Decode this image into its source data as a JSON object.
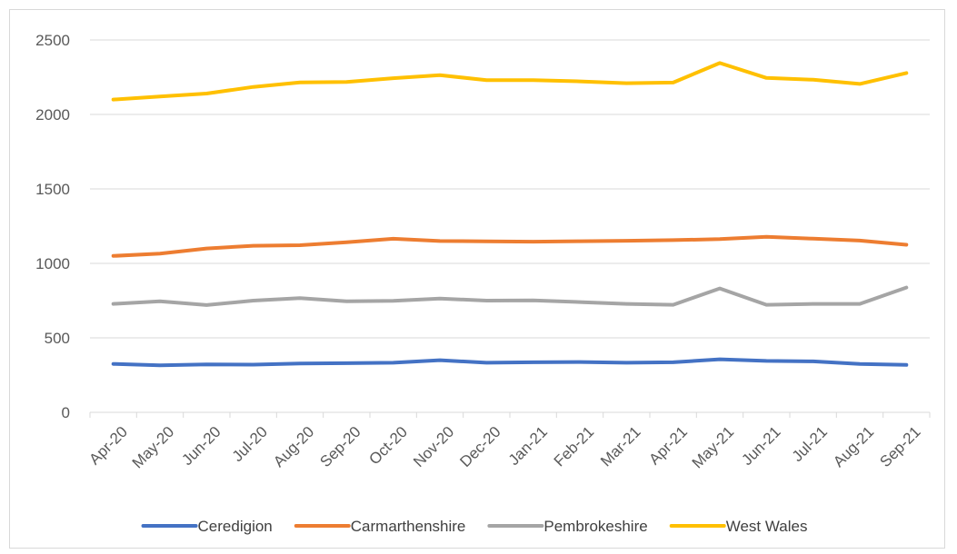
{
  "chart_data": {
    "type": "line",
    "title": "",
    "xlabel": "",
    "ylabel": "",
    "ylim": [
      0,
      2500
    ],
    "yticks": [
      0,
      500,
      1000,
      1500,
      2000,
      2500
    ],
    "grid": "horizontal",
    "legend_position": "bottom",
    "categories": [
      "Apr-20",
      "May-20",
      "Jun-20",
      "Jul-20",
      "Aug-20",
      "Sep-20",
      "Oct-20",
      "Nov-20",
      "Dec-20",
      "Jan-21",
      "Feb-21",
      "Mar-21",
      "Apr-21",
      "May-21",
      "Jun-21",
      "Jul-21",
      "Aug-21",
      "Sep-21"
    ],
    "series": [
      {
        "name": "Ceredigion",
        "color": "#4472c4",
        "values": [
          325,
          315,
          322,
          320,
          328,
          330,
          333,
          350,
          333,
          336,
          338,
          333,
          336,
          356,
          345,
          342,
          325,
          318
        ]
      },
      {
        "name": "Carmarthenshire",
        "color": "#ed7d31",
        "values": [
          1050,
          1065,
          1100,
          1118,
          1122,
          1142,
          1165,
          1150,
          1148,
          1146,
          1149,
          1152,
          1156,
          1163,
          1178,
          1166,
          1153,
          1125
        ]
      },
      {
        "name": "Pembrokeshire",
        "color": "#a5a5a5",
        "values": [
          728,
          745,
          720,
          750,
          767,
          745,
          749,
          764,
          750,
          752,
          740,
          728,
          722,
          832,
          722,
          728,
          728,
          838
        ]
      },
      {
        "name": "West Wales",
        "color": "#ffc000",
        "values": [
          2100,
          2120,
          2140,
          2185,
          2215,
          2218,
          2243,
          2264,
          2230,
          2230,
          2222,
          2210,
          2214,
          2345,
          2245,
          2233,
          2205,
          2278
        ]
      }
    ]
  }
}
